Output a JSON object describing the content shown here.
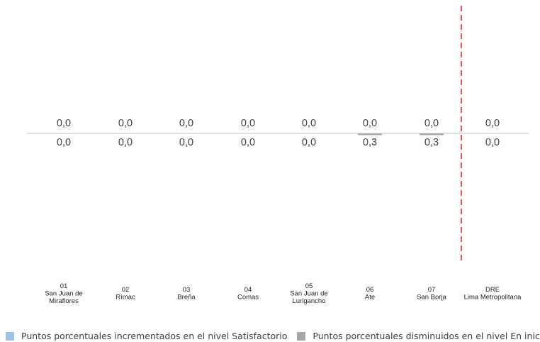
{
  "chart_data": {
    "type": "bar",
    "categories": [
      {
        "code": "01",
        "name": [
          "San Juan de",
          "Miraflores"
        ]
      },
      {
        "code": "02",
        "name": [
          "Rímac"
        ]
      },
      {
        "code": "03",
        "name": [
          "Breña"
        ]
      },
      {
        "code": "04",
        "name": [
          "Comas"
        ]
      },
      {
        "code": "05",
        "name": [
          "San Juan de",
          "Lurigancho"
        ]
      },
      {
        "code": "06",
        "name": [
          "Ate"
        ]
      },
      {
        "code": "07",
        "name": [
          "San Borja"
        ]
      },
      {
        "code": "DRE",
        "name": [
          "Lima Metropolitana"
        ]
      }
    ],
    "series": [
      {
        "name": "Puntos porcentuales incrementados en el nivel Satisfactorio",
        "values": [
          0.0,
          0.0,
          0.0,
          0.0,
          0.0,
          0.0,
          0.0,
          0.0
        ],
        "labels": [
          "0,0",
          "0,0",
          "0,0",
          "0,0",
          "0,0",
          "0,0",
          "0,0",
          "0,0"
        ],
        "color": "#9DC3E6",
        "direction": "up"
      },
      {
        "name": "Puntos porcentuales disminuidos en el nivel En inicio",
        "values": [
          0.0,
          0.0,
          0.0,
          0.0,
          0.0,
          0.3,
          0.3,
          0.0
        ],
        "labels": [
          "0,0",
          "0,0",
          "0,0",
          "0,0",
          "0,0",
          "0,3",
          "0,3",
          "0,0"
        ],
        "color": "#A6A6A6",
        "direction": "down"
      }
    ],
    "divider_color": "#E8505B",
    "baseline_color": "#BFBFBF",
    "grid": false,
    "legend_position": "bottom"
  }
}
